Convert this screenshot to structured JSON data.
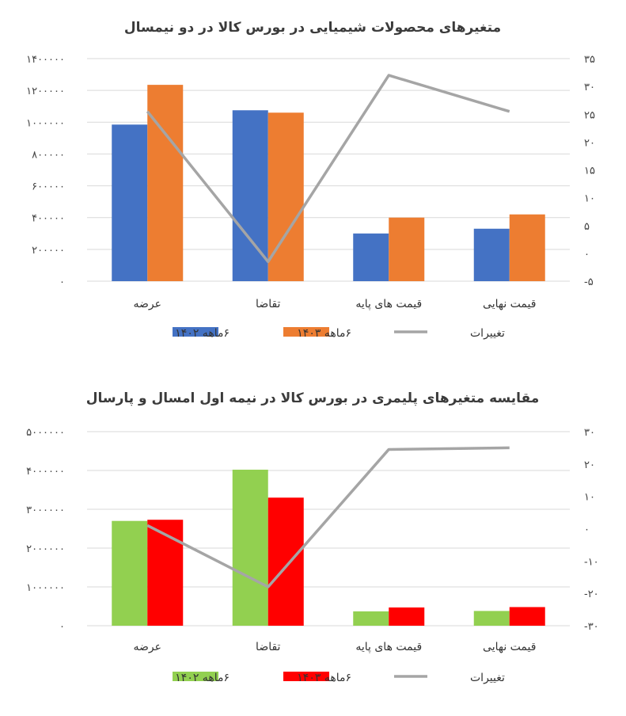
{
  "chart_data": [
    {
      "type": "bar",
      "title": "متغیرهای محصولات شیمیایی در بورس کالا در دو نیمسال",
      "categories": [
        "عرضه",
        "تقاضا",
        "قیمت های پایه",
        "قیمت نهایی"
      ],
      "series": [
        {
          "name": "۶ماهه ۱۴۰۲",
          "values": [
            985000,
            1075000,
            300000,
            330000
          ],
          "color": "#4472c4"
        },
        {
          "name": "۶ماهه ۱۴۰۳",
          "values": [
            1235000,
            1060000,
            400000,
            420000
          ],
          "color": "#ed7d31"
        }
      ],
      "line_series": {
        "name": "تغییرات",
        "values": [
          25.5,
          -1.5,
          32,
          25.5
        ],
        "color": "#a5a5a5"
      },
      "ylim": [
        0,
        1400000
      ],
      "y_ticks": [
        "۰",
        "۲۰۰۰۰۰",
        "۴۰۰۰۰۰",
        "۶۰۰۰۰۰",
        "۸۰۰۰۰۰",
        "۱۰۰۰۰۰۰",
        "۱۲۰۰۰۰۰",
        "۱۴۰۰۰۰۰"
      ],
      "y2lim": [
        -5,
        35
      ],
      "y2_ticks": [
        "-۵",
        "۰",
        "۵",
        "۱۰",
        "۱۵",
        "۲۰",
        "۲۵",
        "۳۰",
        "۳۵"
      ],
      "grid": true,
      "legend": "bottom"
    },
    {
      "type": "bar",
      "title": "مقایسه  متغیرهای پلیمری در بورس کالا در نیمه اول امسال و پارسال",
      "categories": [
        "عرضه",
        "تقاضا",
        "قیمت های پایه",
        "قیمت نهایی"
      ],
      "series": [
        {
          "name": "۶ماهه ۱۴۰۲",
          "values": [
            2700000,
            4020000,
            370000,
            380000
          ],
          "color": "#92d050"
        },
        {
          "name": "۶ماهه ۱۴۰۳",
          "values": [
            2730000,
            3300000,
            470000,
            480000
          ],
          "color": "#ff0000"
        }
      ],
      "line_series": {
        "name": "تغییرات",
        "values": [
          1,
          -18,
          24.5,
          25
        ],
        "color": "#a5a5a5"
      },
      "ylim": [
        0,
        5000000
      ],
      "y_ticks": [
        "۰",
        "۱۰۰۰۰۰۰",
        "۲۰۰۰۰۰۰",
        "۳۰۰۰۰۰۰",
        "۴۰۰۰۰۰۰",
        "۵۰۰۰۰۰۰"
      ],
      "y2lim": [
        -30,
        30
      ],
      "y2_ticks": [
        "-۳۰",
        "-۲۰",
        "-۱۰",
        "۰",
        "۱۰",
        "۲۰",
        "۳۰"
      ],
      "grid": true,
      "legend": "bottom"
    }
  ]
}
